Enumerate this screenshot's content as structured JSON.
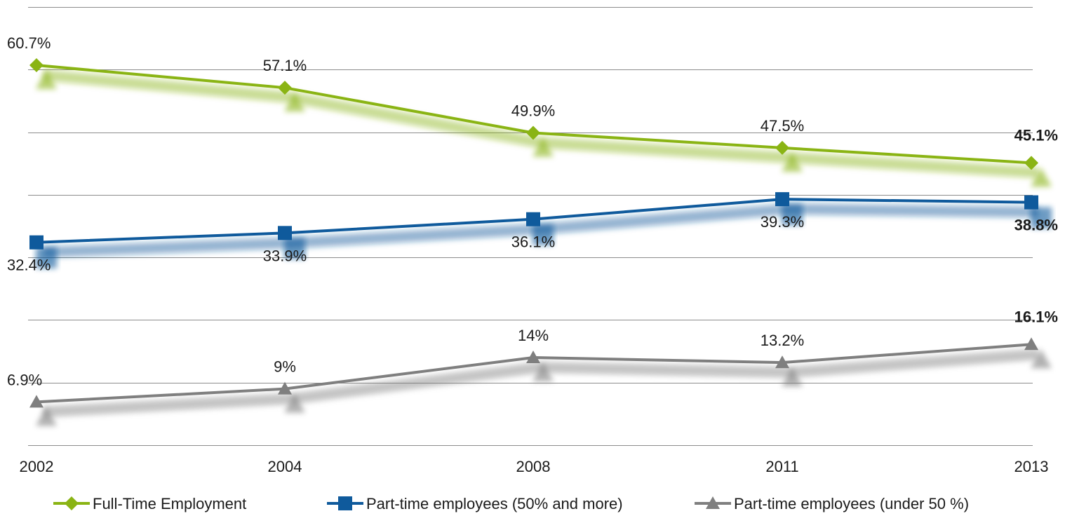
{
  "chart_data": {
    "type": "line",
    "categories": [
      "2002",
      "2004",
      "2008",
      "2011",
      "2013"
    ],
    "ylim": [
      0,
      70
    ],
    "grid": true,
    "legend_position": "bottom",
    "series": [
      {
        "name": "Full-Time Employment",
        "marker": "diamond",
        "color": "#8ab414",
        "values": [
          60.7,
          57.1,
          49.9,
          47.5,
          45.1
        ],
        "labels": [
          "60.7%",
          "57.1%",
          "49.9%",
          "47.5%",
          "45.1%"
        ]
      },
      {
        "name": "Part-time employees (50% and more)",
        "marker": "square",
        "color": "#0f5a9c",
        "values": [
          32.4,
          33.9,
          36.1,
          39.3,
          38.8
        ],
        "labels": [
          "32.4%",
          "33.9%",
          "36.1%",
          "39.3%",
          "38.8%"
        ]
      },
      {
        "name": "Part-time employees (under 50 %)",
        "marker": "triangle",
        "color": "#7f7f7f",
        "values": [
          6.9,
          9,
          14,
          13.2,
          16.1
        ],
        "labels": [
          "6.9%",
          "9%",
          "14%",
          "13.2%",
          "16.1%"
        ]
      }
    ]
  }
}
